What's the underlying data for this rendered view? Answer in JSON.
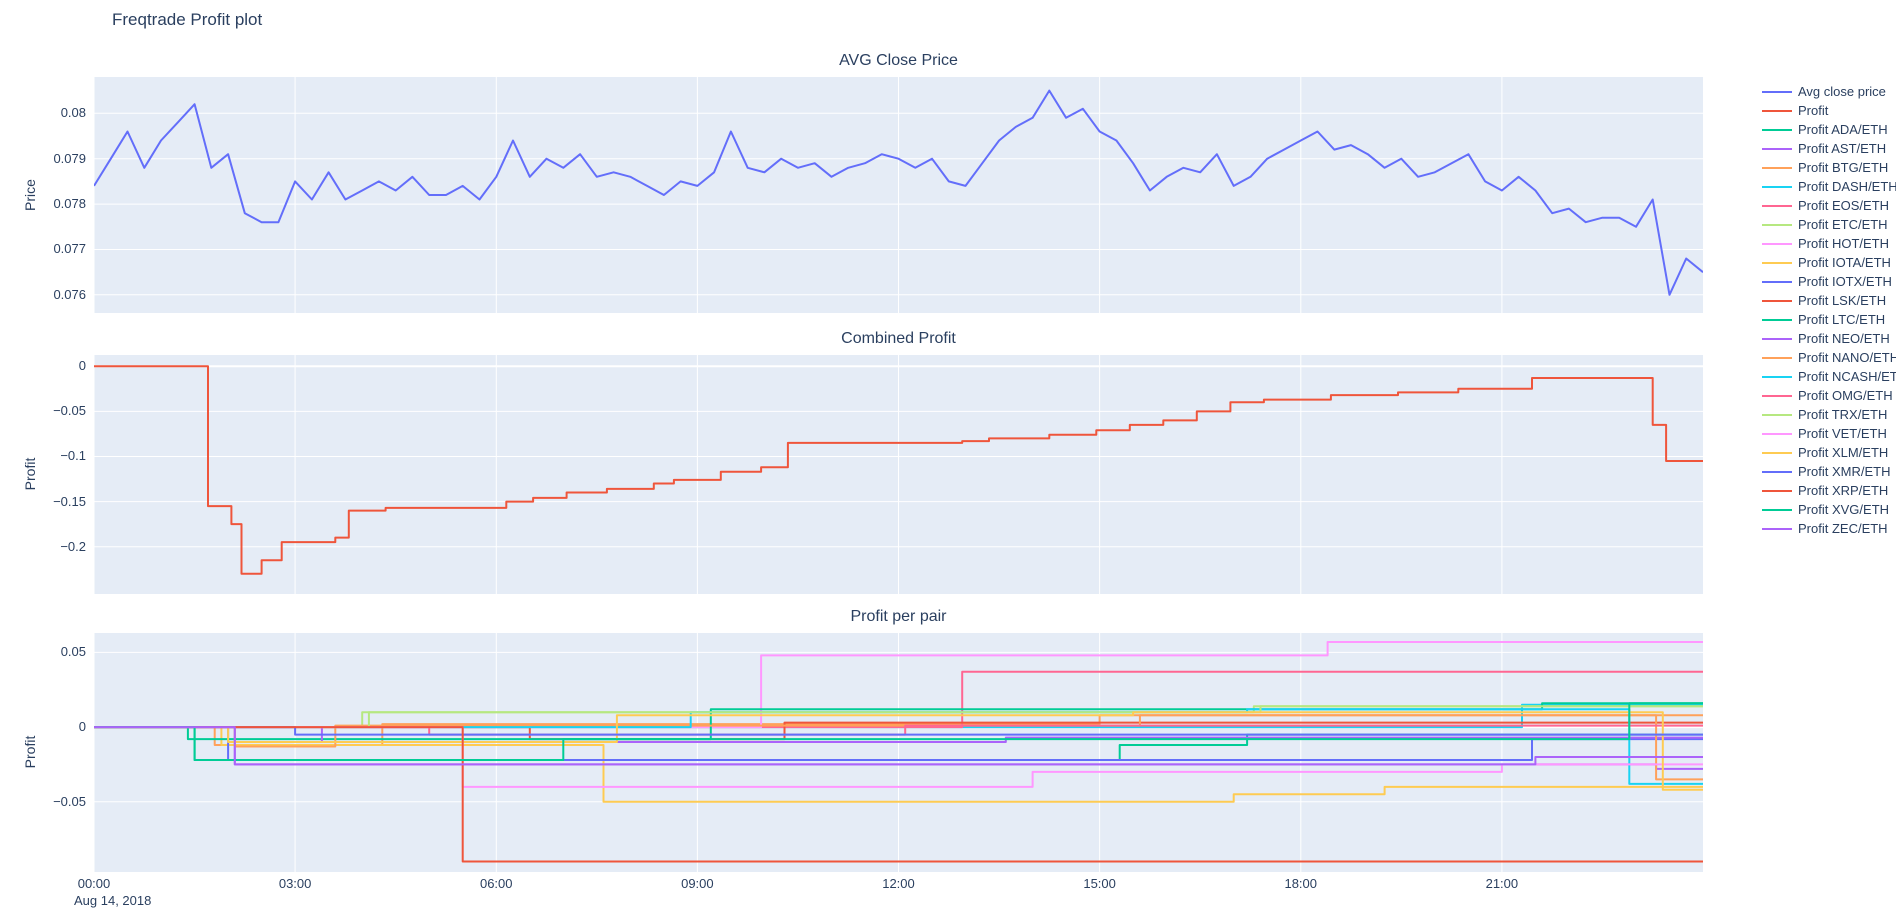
{
  "title": "Freqtrade Profit plot",
  "colors": {
    "background": "#ffffff",
    "plot_bg": "#E5ECF6",
    "grid": "#ffffff",
    "text": "#2a3f5f",
    "accent_line": "#636efa",
    "profit_line": "#EF553B"
  },
  "xaxis": {
    "date_label": "Aug 14, 2018",
    "ticks": [
      {
        "v": 0,
        "label": "00:00"
      },
      {
        "v": 3,
        "label": "03:00"
      },
      {
        "v": 6,
        "label": "06:00"
      },
      {
        "v": 9,
        "label": "09:00"
      },
      {
        "v": 12,
        "label": "12:00"
      },
      {
        "v": 15,
        "label": "15:00"
      },
      {
        "v": 18,
        "label": "18:00"
      },
      {
        "v": 21,
        "label": "21:00"
      }
    ]
  },
  "legend": {
    "items": [
      {
        "label": "Avg close price",
        "color": "#636efa"
      },
      {
        "label": "Profit",
        "color": "#EF553B"
      },
      {
        "label": "Profit ADA/ETH",
        "color": "#00cc96"
      },
      {
        "label": "Profit AST/ETH",
        "color": "#ab63fa"
      },
      {
        "label": "Profit BTG/ETH",
        "color": "#FFA15A"
      },
      {
        "label": "Profit DASH/ETH",
        "color": "#19d3f3"
      },
      {
        "label": "Profit EOS/ETH",
        "color": "#FF6692"
      },
      {
        "label": "Profit ETC/ETH",
        "color": "#B6E880"
      },
      {
        "label": "Profit HOT/ETH",
        "color": "#FF97FF"
      },
      {
        "label": "Profit IOTA/ETH",
        "color": "#FECB52"
      },
      {
        "label": "Profit IOTX/ETH",
        "color": "#636efa"
      },
      {
        "label": "Profit LSK/ETH",
        "color": "#EF553B"
      },
      {
        "label": "Profit LTC/ETH",
        "color": "#00cc96"
      },
      {
        "label": "Profit NEO/ETH",
        "color": "#ab63fa"
      },
      {
        "label": "Profit NANO/ETH",
        "color": "#FFA15A"
      },
      {
        "label": "Profit NCASH/ETH",
        "color": "#19d3f3"
      },
      {
        "label": "Profit OMG/ETH",
        "color": "#FF6692"
      },
      {
        "label": "Profit TRX/ETH",
        "color": "#B6E880"
      },
      {
        "label": "Profit VET/ETH",
        "color": "#FF97FF"
      },
      {
        "label": "Profit XLM/ETH",
        "color": "#FECB52"
      },
      {
        "label": "Profit XMR/ETH",
        "color": "#636efa"
      },
      {
        "label": "Profit XRP/ETH",
        "color": "#EF553B"
      },
      {
        "label": "Profit XVG/ETH",
        "color": "#00cc96"
      },
      {
        "label": "Profit ZEC/ETH",
        "color": "#ab63fa"
      }
    ]
  },
  "chart_data": [
    {
      "type": "line",
      "title": "AVG Close Price",
      "ylabel": "Price",
      "xlabel": "",
      "xlim": [
        0,
        24
      ],
      "ylim": [
        0.0756,
        0.0808
      ],
      "grid": true,
      "legend_position": "right",
      "yticks": [
        {
          "v": 0.076,
          "label": "0.076"
        },
        {
          "v": 0.077,
          "label": "0.077"
        },
        {
          "v": 0.078,
          "label": "0.078"
        },
        {
          "v": 0.079,
          "label": "0.079"
        },
        {
          "v": 0.08,
          "label": "0.08"
        }
      ],
      "series": [
        {
          "name": "Avg close price",
          "color": "#636efa",
          "mode": "linear",
          "x0": 0,
          "dx": 0.25,
          "y": [
            0.0784,
            0.079,
            0.0796,
            0.0788,
            0.0794,
            0.0798,
            0.0802,
            0.0788,
            0.0791,
            0.0778,
            0.0776,
            0.0776,
            0.0785,
            0.0781,
            0.0787,
            0.0781,
            0.0783,
            0.0785,
            0.0783,
            0.0786,
            0.0782,
            0.0782,
            0.0784,
            0.0781,
            0.0786,
            0.0794,
            0.0786,
            0.079,
            0.0788,
            0.0791,
            0.0786,
            0.0787,
            0.0786,
            0.0784,
            0.0782,
            0.0785,
            0.0784,
            0.0787,
            0.0796,
            0.0788,
            0.0787,
            0.079,
            0.0788,
            0.0789,
            0.0786,
            0.0788,
            0.0789,
            0.0791,
            0.079,
            0.0788,
            0.079,
            0.0785,
            0.0784,
            0.0789,
            0.0794,
            0.0797,
            0.0799,
            0.0805,
            0.0799,
            0.0801,
            0.0796,
            0.0794,
            0.0789,
            0.0783,
            0.0786,
            0.0788,
            0.0787,
            0.0791,
            0.0784,
            0.0786,
            0.079,
            0.0792,
            0.0794,
            0.0796,
            0.0792,
            0.0793,
            0.0791,
            0.0788,
            0.079,
            0.0786,
            0.0787,
            0.0789,
            0.0791,
            0.0785,
            0.0783,
            0.0786,
            0.0783,
            0.0778,
            0.0779,
            0.0776,
            0.0777,
            0.0777,
            0.0775,
            0.0781,
            0.076,
            0.0768,
            0.0765
          ]
        }
      ]
    },
    {
      "type": "line",
      "title": "Combined Profit",
      "ylabel": "Profit",
      "xlabel": "",
      "xlim": [
        0,
        24
      ],
      "ylim": [
        -0.2525,
        0.0125
      ],
      "grid": true,
      "yticks": [
        {
          "v": 0,
          "label": "0"
        },
        {
          "v": -0.05,
          "label": "−0.05"
        },
        {
          "v": -0.1,
          "label": "−0.1"
        },
        {
          "v": -0.15,
          "label": "−0.15"
        },
        {
          "v": -0.2,
          "label": "−0.2"
        }
      ],
      "series": [
        {
          "name": "Profit",
          "color": "#EF553B",
          "mode": "step",
          "points": [
            [
              0,
              0
            ],
            [
              1.7,
              -0.155
            ],
            [
              2.05,
              -0.175
            ],
            [
              2.2,
              -0.23
            ],
            [
              2.5,
              -0.215
            ],
            [
              2.8,
              -0.195
            ],
            [
              3.6,
              -0.19
            ],
            [
              3.8,
              -0.16
            ],
            [
              4.35,
              -0.157
            ],
            [
              6.15,
              -0.15
            ],
            [
              6.55,
              -0.146
            ],
            [
              7.05,
              -0.14
            ],
            [
              7.65,
              -0.136
            ],
            [
              8.35,
              -0.13
            ],
            [
              8.65,
              -0.126
            ],
            [
              9.35,
              -0.117
            ],
            [
              9.95,
              -0.112
            ],
            [
              10.35,
              -0.085
            ],
            [
              12.95,
              -0.083
            ],
            [
              13.35,
              -0.08
            ],
            [
              14.25,
              -0.076
            ],
            [
              14.95,
              -0.071
            ],
            [
              15.45,
              -0.065
            ],
            [
              15.95,
              -0.06
            ],
            [
              16.45,
              -0.05
            ],
            [
              16.95,
              -0.04
            ],
            [
              17.45,
              -0.037
            ],
            [
              18.45,
              -0.032
            ],
            [
              19.45,
              -0.029
            ],
            [
              20.35,
              -0.025
            ],
            [
              21.45,
              -0.013
            ],
            [
              23.25,
              -0.065
            ],
            [
              23.45,
              -0.105
            ],
            [
              24,
              -0.105
            ]
          ]
        }
      ]
    },
    {
      "type": "line",
      "title": "Profit per pair",
      "ylabel": "Profit",
      "xlabel": "",
      "xlim": [
        0,
        24
      ],
      "ylim": [
        -0.097,
        0.063
      ],
      "grid": true,
      "yticks": [
        {
          "v": 0.05,
          "label": "0.05"
        },
        {
          "v": 0,
          "label": "0"
        },
        {
          "v": -0.05,
          "label": "−0.05"
        }
      ],
      "series": [
        {
          "name": "Profit ADA/ETH",
          "color": "#00cc96",
          "mode": "step",
          "points": [
            [
              0,
              0
            ],
            [
              1.5,
              -0.022
            ],
            [
              15.3,
              -0.012
            ],
            [
              17.2,
              -0.005
            ],
            [
              24,
              -0.005
            ]
          ]
        },
        {
          "name": "Profit AST/ETH",
          "color": "#ab63fa",
          "mode": "step",
          "points": [
            [
              0,
              0
            ],
            [
              2.1,
              -0.025
            ],
            [
              23.3,
              -0.028
            ],
            [
              24,
              -0.028
            ]
          ]
        },
        {
          "name": "Profit BTG/ETH",
          "color": "#FFA15A",
          "mode": "step",
          "points": [
            [
              0,
              0
            ],
            [
              1.8,
              -0.012
            ],
            [
              4.3,
              0.002
            ],
            [
              15.0,
              0.008
            ],
            [
              24,
              0.008
            ]
          ]
        },
        {
          "name": "Profit DASH/ETH",
          "color": "#19d3f3",
          "mode": "step",
          "points": [
            [
              0,
              0
            ],
            [
              21.3,
              0.015
            ],
            [
              24,
              0.015
            ]
          ]
        },
        {
          "name": "Profit EOS/ETH",
          "color": "#FF6692",
          "mode": "step",
          "points": [
            [
              0,
              0
            ],
            [
              12.95,
              0.037
            ],
            [
              24,
              0.037
            ]
          ]
        },
        {
          "name": "Profit ETC/ETH",
          "color": "#B6E880",
          "mode": "step",
          "points": [
            [
              0,
              0
            ],
            [
              4.0,
              0.01
            ],
            [
              17.3,
              0.014
            ],
            [
              24,
              0.014
            ]
          ]
        },
        {
          "name": "Profit HOT/ETH",
          "color": "#FF97FF",
          "mode": "step",
          "points": [
            [
              0,
              0
            ],
            [
              9.95,
              0.048
            ],
            [
              18.4,
              0.057
            ],
            [
              24,
              0.057
            ]
          ]
        },
        {
          "name": "Profit IOTA/ETH",
          "color": "#FECB52",
          "mode": "step",
          "points": [
            [
              0,
              0
            ],
            [
              1.9,
              -0.012
            ],
            [
              7.6,
              -0.05
            ],
            [
              17.0,
              -0.045
            ],
            [
              19.25,
              -0.04
            ],
            [
              24,
              -0.04
            ]
          ]
        },
        {
          "name": "Profit IOTX/ETH",
          "color": "#636efa",
          "mode": "step",
          "points": [
            [
              0,
              0
            ],
            [
              2.0,
              -0.022
            ],
            [
              21.45,
              -0.008
            ],
            [
              24,
              -0.008
            ]
          ]
        },
        {
          "name": "Profit LSK/ETH",
          "color": "#EF553B",
          "mode": "step",
          "points": [
            [
              0,
              0
            ],
            [
              6.5,
              -0.008
            ],
            [
              10.3,
              0.003
            ],
            [
              24,
              0.003
            ]
          ]
        },
        {
          "name": "Profit LTC/ETH",
          "color": "#00cc96",
          "mode": "step",
          "points": [
            [
              0,
              0
            ],
            [
              1.4,
              -0.008
            ],
            [
              9.2,
              0.012
            ],
            [
              21.6,
              0.016
            ],
            [
              24,
              0.016
            ]
          ]
        },
        {
          "name": "Profit NEO/ETH",
          "color": "#ab63fa",
          "mode": "step",
          "points": [
            [
              0,
              0
            ],
            [
              3.4,
              -0.01
            ],
            [
              13.6,
              -0.007
            ],
            [
              24,
              -0.007
            ]
          ]
        },
        {
          "name": "Profit NANO/ETH",
          "color": "#FFA15A",
          "mode": "step",
          "points": [
            [
              0,
              0
            ],
            [
              2.1,
              -0.013
            ],
            [
              3.6,
              0.001
            ],
            [
              15.6,
              0.008
            ],
            [
              23.3,
              -0.035
            ],
            [
              24,
              -0.035
            ]
          ]
        },
        {
          "name": "Profit NCASH/ETH",
          "color": "#19d3f3",
          "mode": "step",
          "points": [
            [
              0,
              0
            ],
            [
              8.9,
              0.01
            ],
            [
              17.2,
              0.012
            ],
            [
              22.9,
              -0.038
            ],
            [
              24,
              -0.038
            ]
          ]
        },
        {
          "name": "Profit OMG/ETH",
          "color": "#FF6692",
          "mode": "step",
          "points": [
            [
              0,
              0
            ],
            [
              5.0,
              -0.005
            ],
            [
              12.1,
              0.001
            ],
            [
              24,
              0.001
            ]
          ]
        },
        {
          "name": "Profit TRX/ETH",
          "color": "#B6E880",
          "mode": "step",
          "points": [
            [
              0,
              0
            ],
            [
              4.1,
              0.01
            ],
            [
              17.4,
              0.014
            ],
            [
              24,
              0.014
            ]
          ]
        },
        {
          "name": "Profit VET/ETH",
          "color": "#FF97FF",
          "mode": "step",
          "points": [
            [
              0,
              0
            ],
            [
              5.5,
              -0.04
            ],
            [
              14.0,
              -0.03
            ],
            [
              21.0,
              -0.025
            ],
            [
              24,
              -0.025
            ]
          ]
        },
        {
          "name": "Profit XLM/ETH",
          "color": "#FECB52",
          "mode": "step",
          "points": [
            [
              0,
              0
            ],
            [
              2.0,
              -0.01
            ],
            [
              7.8,
              0.008
            ],
            [
              15.5,
              0.01
            ],
            [
              23.4,
              -0.042
            ],
            [
              24,
              -0.042
            ]
          ]
        },
        {
          "name": "Profit XMR/ETH",
          "color": "#636efa",
          "mode": "step",
          "points": [
            [
              0,
              0
            ],
            [
              3.0,
              -0.005
            ],
            [
              24,
              -0.005
            ]
          ]
        },
        {
          "name": "Profit XRP/ETH",
          "color": "#EF553B",
          "mode": "step",
          "points": [
            [
              0,
              0
            ],
            [
              5.5,
              -0.09
            ],
            [
              24,
              -0.09
            ]
          ]
        },
        {
          "name": "Profit XVG/ETH",
          "color": "#00cc96",
          "mode": "step",
          "points": [
            [
              0,
              0
            ],
            [
              1.5,
              -0.022
            ],
            [
              7.0,
              -0.008
            ],
            [
              22.9,
              0.016
            ],
            [
              24,
              0.016
            ]
          ]
        },
        {
          "name": "Profit ZEC/ETH",
          "color": "#ab63fa",
          "mode": "step",
          "points": [
            [
              0,
              0
            ],
            [
              2.1,
              -0.025
            ],
            [
              21.5,
              -0.02
            ],
            [
              24,
              -0.02
            ]
          ]
        }
      ]
    }
  ]
}
